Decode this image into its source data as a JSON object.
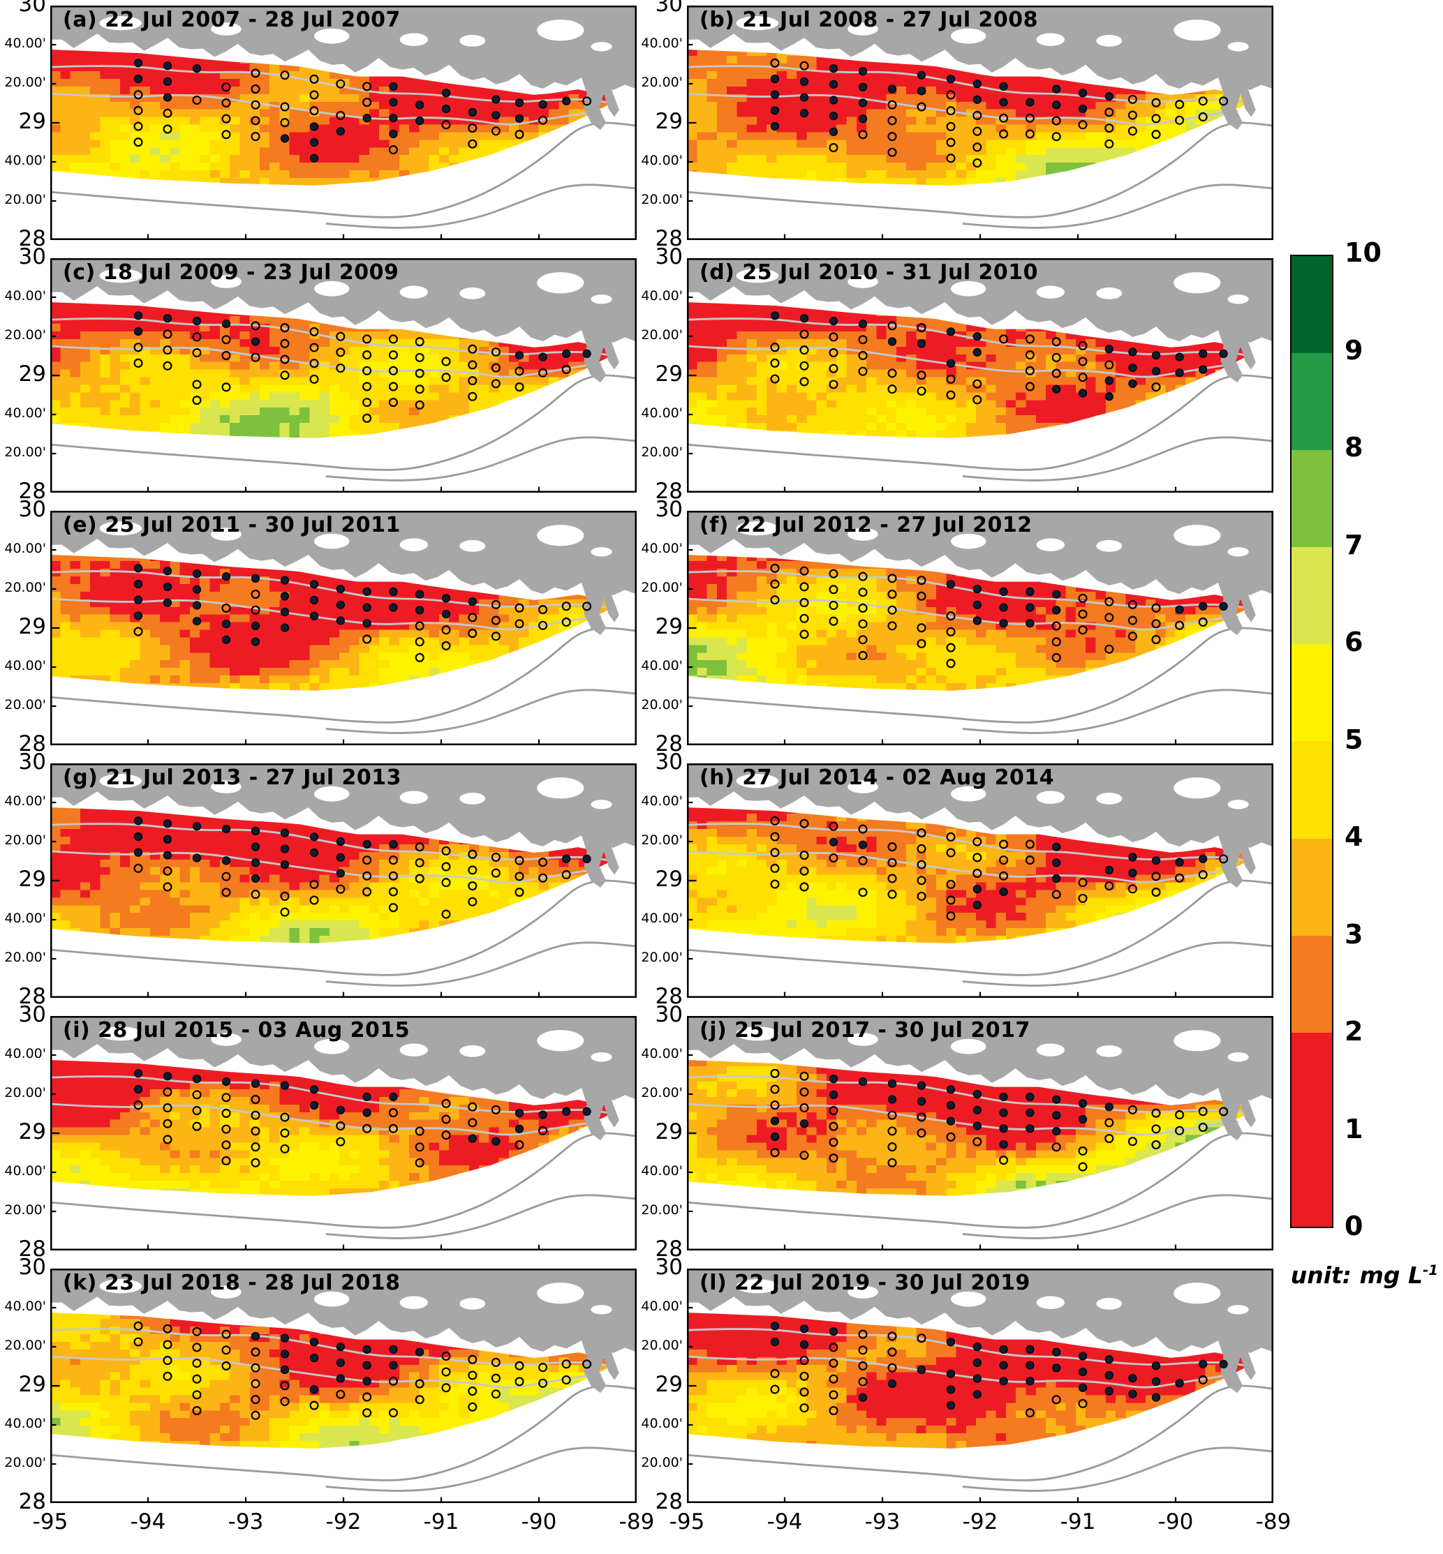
{
  "figure": {
    "panels": [
      {
        "label": "a",
        "title": "(a) 22 Jul 2007 - 28 Jul 2007"
      },
      {
        "label": "b",
        "title": "(b) 21 Jul 2008 - 27 Jul 2008"
      },
      {
        "label": "c",
        "title": "(c) 18 Jul 2009 - 23 Jul 2009"
      },
      {
        "label": "d",
        "title": "(d) 25 Jul 2010 - 31 Jul 2010"
      },
      {
        "label": "e",
        "title": "(e) 25 Jul 2011 - 30 Jul 2011"
      },
      {
        "label": "f",
        "title": "(f) 22 Jul 2012 - 27 Jul 2012"
      },
      {
        "label": "g",
        "title": "(g) 21 Jul 2013 - 27 Jul 2013"
      },
      {
        "label": "h",
        "title": "(h) 27 Jul 2014 - 02 Aug 2014"
      },
      {
        "label": "i",
        "title": "(i) 28 Jul 2015 - 03 Aug 2015"
      },
      {
        "label": "j",
        "title": "(j) 25 Jul 2017 - 30 Jul 2017"
      },
      {
        "label": "k",
        "title": "(k) 23 Jul 2018 - 28 Jul 2018"
      },
      {
        "label": "l",
        "title": "(l) 22 Jul 2019 - 30 Jul 2019"
      }
    ],
    "y_ticks": [
      "30",
      "40.00'",
      "20.00'",
      "29",
      "40.00'",
      "20.00'",
      "28"
    ],
    "x_ticks": [
      "-95",
      "-94",
      "-93",
      "-92",
      "-91",
      "-90",
      "-89"
    ],
    "colorbar": {
      "ticks": [
        "10",
        "9",
        "8",
        "7",
        "6",
        "5",
        "4",
        "3",
        "2",
        "1",
        "0"
      ],
      "unit_prefix": "unit: mg L",
      "unit_sup": "-1",
      "segments": [
        {
          "from": 9,
          "to": 10,
          "color": "#00652b"
        },
        {
          "from": 8,
          "to": 9,
          "color": "#239a44"
        },
        {
          "from": 7,
          "to": 8,
          "color": "#7dc13d"
        },
        {
          "from": 6,
          "to": 7,
          "color": "#d9e64f"
        },
        {
          "from": 5,
          "to": 6,
          "color": "#fff200"
        },
        {
          "from": 4,
          "to": 5,
          "color": "#ffe000"
        },
        {
          "from": 3,
          "to": 4,
          "color": "#fdb515"
        },
        {
          "from": 2,
          "to": 3,
          "color": "#f47b20"
        },
        {
          "from": 0,
          "to": 2,
          "color": "#ed1c24"
        }
      ]
    },
    "map_colors": {
      "land": "#a7a7a7",
      "sea": "#ffffff",
      "shallow_contour": "#c8c8c8",
      "deep_contour": "#9b9b9b",
      "station_filled": "#0d1b33",
      "station_open_stroke": "#000000"
    }
  },
  "chart_data": {
    "type": "heatmap",
    "title": "",
    "description_visible": "12 map panels of the Louisiana-Texas shelf showing a gridded concentration field with survey station markers (open and filled circles), shared colorbar 0-10",
    "unit": "mg L^-1",
    "xlim": [
      -95,
      -89
    ],
    "ylim": [
      28,
      30
    ],
    "x_tick_values": [
      -95,
      -94,
      -93,
      -92,
      -91,
      -90,
      -89
    ],
    "y_tick_labels": [
      "30",
      "40.00'",
      "20.00'",
      "29",
      "40.00'",
      "20.00'",
      "28"
    ],
    "colorbar": {
      "min": 0,
      "max": 10,
      "tick_labels": [
        10,
        9,
        8,
        7,
        6,
        5,
        4,
        3,
        2,
        1,
        0
      ],
      "unit": "mg L^-1",
      "segment_colors_top_to_bottom": [
        "#00652b",
        "#239a44",
        "#7dc13d",
        "#d9e64f",
        "#fff200",
        "#ffe000",
        "#fdb515",
        "#f47b20",
        "#ed1c24"
      ]
    },
    "marker_styles": [
      "open circle station",
      "filled dark circle station"
    ],
    "panels": [
      {
        "label": "a",
        "date_range": "22 Jul 2007 - 28 Jul 2007"
      },
      {
        "label": "b",
        "date_range": "21 Jul 2008 - 27 Jul 2008"
      },
      {
        "label": "c",
        "date_range": "18 Jul 2009 - 23 Jul 2009"
      },
      {
        "label": "d",
        "date_range": "25 Jul 2010 - 31 Jul 2010"
      },
      {
        "label": "e",
        "date_range": "25 Jul 2011 - 30 Jul 2011"
      },
      {
        "label": "f",
        "date_range": "22 Jul 2012 - 27 Jul 2012"
      },
      {
        "label": "g",
        "date_range": "21 Jul 2013 - 27 Jul 2013"
      },
      {
        "label": "h",
        "date_range": "27 Jul 2014 - 02 Aug 2014"
      },
      {
        "label": "i",
        "date_range": "28 Jul 2015 - 03 Aug 2015"
      },
      {
        "label": "j",
        "date_range": "25 Jul 2017 - 30 Jul 2017"
      },
      {
        "label": "k",
        "date_range": "23 Jul 2018 - 28 Jul 2018"
      },
      {
        "label": "l",
        "date_range": "22 Jul 2019 - 30 Jul 2019"
      }
    ]
  }
}
